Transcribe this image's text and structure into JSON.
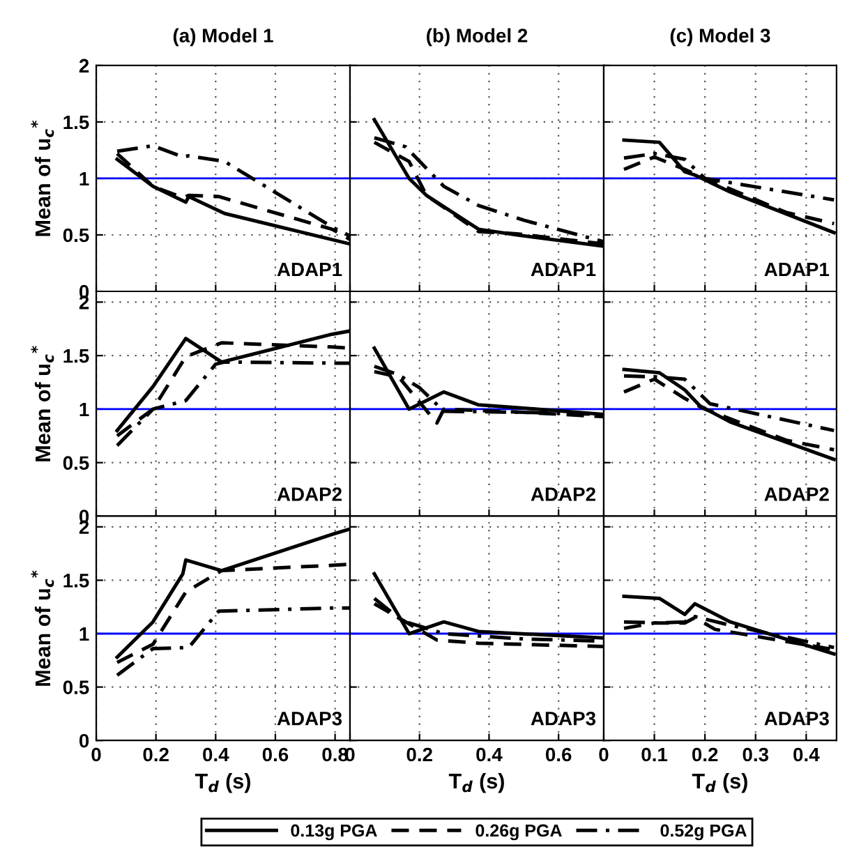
{
  "chart_data": [
    {
      "type": "line",
      "title": "(a) Model 1",
      "ylabel": "Mean of u$_{c}$$^{*}$",
      "annotations": [
        "ADAP1"
      ],
      "xlim": [
        0,
        0.85
      ],
      "xticks": [
        0,
        0.2,
        0.4,
        0.6,
        0.8
      ],
      "ylim": [
        0,
        2
      ],
      "yticks": [
        0,
        0.5,
        1,
        1.5,
        2
      ],
      "grid": true,
      "tick_labels": "y",
      "ref_lines": [
        {
          "axis": "y",
          "value": 1,
          "color": "#0000ff"
        }
      ],
      "series": [
        {
          "color": "#000000",
          "line_style": "solid",
          "x": [
            0.07,
            0.19,
            0.3,
            0.31,
            0.43,
            0.85
          ],
          "values": [
            1.17,
            0.93,
            0.79,
            0.84,
            0.69,
            0.42
          ]
        },
        {
          "color": "#000000",
          "line_style": "dashed",
          "x": [
            0.07,
            0.19,
            0.29,
            0.31,
            0.41,
            0.79,
            0.85
          ],
          "values": [
            1.22,
            0.93,
            0.83,
            0.85,
            0.84,
            0.55,
            0.46
          ]
        },
        {
          "color": "#000000",
          "line_style": "dashdot",
          "x": [
            0.07,
            0.19,
            0.29,
            0.31,
            0.43,
            0.79,
            0.85
          ],
          "values": [
            1.24,
            1.29,
            1.19,
            1.2,
            1.15,
            0.57,
            0.49
          ]
        }
      ]
    },
    {
      "type": "line",
      "title": "(b) Model 2",
      "annotations": [
        "ADAP1"
      ],
      "xlim": [
        0,
        0.73
      ],
      "xticks": [
        0,
        0.2,
        0.4,
        0.6
      ],
      "ylim": [
        0,
        2
      ],
      "yticks": [
        0,
        0.5,
        1,
        1.5,
        2
      ],
      "grid": true,
      "tick_labels": false,
      "ref_lines": [
        {
          "axis": "y",
          "value": 1,
          "color": "#0000ff"
        }
      ],
      "series": [
        {
          "color": "#000000",
          "line_style": "solid",
          "x": [
            0.07,
            0.17,
            0.22,
            0.37,
            0.48,
            0.73
          ],
          "values": [
            1.52,
            1.0,
            0.85,
            0.55,
            0.5,
            0.4
          ]
        },
        {
          "color": "#000000",
          "line_style": "dashed",
          "x": [
            0.07,
            0.17,
            0.22,
            0.37,
            0.48,
            0.73
          ],
          "values": [
            1.32,
            1.15,
            0.85,
            0.53,
            0.51,
            0.42
          ]
        },
        {
          "color": "#000000",
          "line_style": "dashdot",
          "x": [
            0.07,
            0.16,
            0.27,
            0.37,
            0.5,
            0.73
          ],
          "values": [
            1.36,
            1.28,
            0.93,
            0.76,
            0.63,
            0.44
          ]
        }
      ]
    },
    {
      "type": "line",
      "title": "(c) Model 3",
      "annotations": [
        "ADAP1"
      ],
      "xlim": [
        0,
        0.46
      ],
      "xticks": [
        0,
        0.1,
        0.2,
        0.3,
        0.4
      ],
      "ylim": [
        0,
        2
      ],
      "yticks": [
        0,
        0.5,
        1,
        1.5,
        2
      ],
      "grid": true,
      "tick_labels": false,
      "ref_lines": [
        {
          "axis": "y",
          "value": 1,
          "color": "#0000ff"
        }
      ],
      "series": [
        {
          "color": "#000000",
          "line_style": "solid",
          "x": [
            0.04,
            0.11,
            0.16,
            0.18,
            0.25,
            0.455
          ],
          "values": [
            1.34,
            1.32,
            1.06,
            1.03,
            0.88,
            0.52
          ]
        },
        {
          "color": "#000000",
          "line_style": "dashed",
          "x": [
            0.04,
            0.1,
            0.16,
            0.2,
            0.36,
            0.455
          ],
          "values": [
            1.08,
            1.19,
            1.08,
            1.0,
            0.7,
            0.6
          ]
        },
        {
          "color": "#000000",
          "line_style": "dashdot",
          "x": [
            0.04,
            0.1,
            0.16,
            0.2,
            0.455
          ],
          "values": [
            1.18,
            1.22,
            1.17,
            1.0,
            0.81
          ]
        }
      ]
    },
    {
      "type": "line",
      "ylabel": "Mean of u$_{c}$$^{*}$",
      "annotations": [
        "ADAP2"
      ],
      "xlim": [
        0,
        0.85
      ],
      "xticks": [
        0,
        0.2,
        0.4,
        0.6,
        0.8
      ],
      "ylim": [
        0,
        2.1
      ],
      "yticks": [
        0,
        0.5,
        1,
        1.5,
        2
      ],
      "grid": true,
      "tick_labels": "y",
      "ref_lines": [
        {
          "axis": "y",
          "value": 1,
          "color": "#0000ff"
        }
      ],
      "series": [
        {
          "color": "#000000",
          "line_style": "solid",
          "x": [
            0.07,
            0.19,
            0.3,
            0.42,
            0.79,
            0.85
          ],
          "values": [
            0.8,
            1.21,
            1.66,
            1.44,
            1.7,
            1.73
          ]
        },
        {
          "color": "#000000",
          "line_style": "dashed",
          "x": [
            0.07,
            0.19,
            0.3,
            0.42,
            0.79,
            0.85
          ],
          "values": [
            0.75,
            1.0,
            1.49,
            1.62,
            1.58,
            1.57
          ]
        },
        {
          "color": "#000000",
          "line_style": "dashdot",
          "x": [
            0.07,
            0.19,
            0.3,
            0.4,
            0.43,
            0.79,
            0.85
          ],
          "values": [
            0.66,
            1.0,
            1.08,
            1.42,
            1.44,
            1.43,
            1.43
          ]
        }
      ]
    },
    {
      "type": "line",
      "annotations": [
        "ADAP2"
      ],
      "xlim": [
        0,
        0.73
      ],
      "xticks": [
        0,
        0.2,
        0.4,
        0.6
      ],
      "ylim": [
        0,
        2.1
      ],
      "yticks": [
        0,
        0.5,
        1,
        1.5,
        2
      ],
      "grid": true,
      "tick_labels": false,
      "ref_lines": [
        {
          "axis": "y",
          "value": 1,
          "color": "#0000ff"
        }
      ],
      "series": [
        {
          "color": "#000000",
          "line_style": "solid",
          "x": [
            0.07,
            0.17,
            0.27,
            0.37,
            0.5,
            0.73
          ],
          "values": [
            1.57,
            1.0,
            1.16,
            1.04,
            1.01,
            0.95
          ]
        },
        {
          "color": "#000000",
          "line_style": "dashed",
          "x": [
            0.07,
            0.14,
            0.25,
            0.27,
            0.5,
            0.73
          ],
          "values": [
            1.35,
            1.3,
            0.87,
            1.0,
            0.97,
            0.93
          ]
        },
        {
          "color": "#000000",
          "line_style": "dashdot",
          "x": [
            0.07,
            0.14,
            0.2,
            0.27,
            0.5,
            0.73
          ],
          "values": [
            1.4,
            1.32,
            1.2,
            0.98,
            0.97,
            0.95
          ]
        }
      ]
    },
    {
      "type": "line",
      "annotations": [
        "ADAP2"
      ],
      "xlim": [
        0,
        0.46
      ],
      "xticks": [
        0,
        0.1,
        0.2,
        0.3,
        0.4
      ],
      "ylim": [
        0,
        2.1
      ],
      "yticks": [
        0,
        0.5,
        1,
        1.5,
        2
      ],
      "grid": true,
      "tick_labels": false,
      "ref_lines": [
        {
          "axis": "y",
          "value": 1,
          "color": "#0000ff"
        }
      ],
      "series": [
        {
          "color": "#000000",
          "line_style": "solid",
          "x": [
            0.04,
            0.11,
            0.16,
            0.19,
            0.25,
            0.455
          ],
          "values": [
            1.37,
            1.34,
            1.18,
            1.03,
            0.88,
            0.53
          ]
        },
        {
          "color": "#000000",
          "line_style": "dashed",
          "x": [
            0.04,
            0.1,
            0.16,
            0.2,
            0.36,
            0.455
          ],
          "values": [
            1.16,
            1.28,
            1.1,
            1.0,
            0.71,
            0.62
          ]
        },
        {
          "color": "#000000",
          "line_style": "dashdot",
          "x": [
            0.04,
            0.11,
            0.16,
            0.21,
            0.455
          ],
          "values": [
            1.31,
            1.3,
            1.28,
            1.05,
            0.8
          ]
        }
      ]
    },
    {
      "type": "line",
      "ylabel": "Mean of u$_{c}$$^{*}$",
      "xlabel": "T$_{d}$ (s)",
      "annotations": [
        "ADAP3"
      ],
      "xlim": [
        0,
        0.85
      ],
      "xticks": [
        0,
        0.2,
        0.4,
        0.6,
        0.8
      ],
      "ylim": [
        0,
        2.1
      ],
      "yticks": [
        0,
        0.5,
        1,
        1.5,
        2
      ],
      "grid": true,
      "ref_lines": [
        {
          "axis": "y",
          "value": 1,
          "color": "#0000ff"
        }
      ],
      "series": [
        {
          "color": "#000000",
          "line_style": "solid",
          "x": [
            0.07,
            0.19,
            0.29,
            0.3,
            0.42,
            0.79,
            0.85
          ],
          "values": [
            0.78,
            1.11,
            1.56,
            1.69,
            1.59,
            1.93,
            1.98
          ]
        },
        {
          "color": "#000000",
          "line_style": "dashed",
          "x": [
            0.07,
            0.19,
            0.3,
            0.42,
            0.79,
            0.85
          ],
          "values": [
            0.73,
            0.9,
            1.39,
            1.59,
            1.64,
            1.65
          ]
        },
        {
          "color": "#000000",
          "line_style": "dashdot",
          "x": [
            0.07,
            0.19,
            0.31,
            0.41,
            0.79,
            0.85
          ],
          "values": [
            0.61,
            0.86,
            0.87,
            1.21,
            1.24,
            1.24
          ]
        }
      ]
    },
    {
      "type": "line",
      "xlabel": "T$_{d}$ (s)",
      "annotations": [
        "ADAP3"
      ],
      "xlim": [
        0,
        0.73
      ],
      "xticks": [
        0,
        0.2,
        0.4,
        0.6
      ],
      "ylim": [
        0,
        2.1
      ],
      "yticks": [
        0,
        0.5,
        1,
        1.5,
        2
      ],
      "grid": true,
      "tick_labels": "x",
      "legend": "bottom",
      "ref_lines": [
        {
          "axis": "y",
          "value": 1,
          "color": "#0000ff"
        }
      ],
      "series": [
        {
          "name": "0.13g PGA",
          "color": "#000000",
          "line_style": "solid",
          "x": [
            0.07,
            0.17,
            0.27,
            0.37,
            0.73
          ],
          "values": [
            1.56,
            1.0,
            1.11,
            1.02,
            0.96
          ]
        },
        {
          "name": "0.26g PGA",
          "color": "#000000",
          "line_style": "dashed",
          "x": [
            0.07,
            0.25,
            0.37,
            0.73
          ],
          "values": [
            1.28,
            0.94,
            0.91,
            0.88
          ]
        },
        {
          "name": "0.52g PGA",
          "color": "#000000",
          "line_style": "dashdot",
          "x": [
            0.07,
            0.15,
            0.27,
            0.5,
            0.73
          ],
          "values": [
            1.33,
            1.12,
            1.0,
            0.95,
            0.93
          ]
        }
      ]
    },
    {
      "type": "line",
      "xlabel": "T$_{d}$ (s)",
      "annotations": [
        "ADAP3"
      ],
      "xlim": [
        0,
        0.46
      ],
      "xticks": [
        0,
        0.1,
        0.2,
        0.3,
        0.4
      ],
      "ylim": [
        0,
        2.1
      ],
      "yticks": [
        0,
        0.5,
        1,
        1.5,
        2
      ],
      "grid": true,
      "tick_labels": "x",
      "ref_lines": [
        {
          "axis": "y",
          "value": 1,
          "color": "#0000ff"
        }
      ],
      "series": [
        {
          "color": "#000000",
          "line_style": "solid",
          "x": [
            0.04,
            0.11,
            0.16,
            0.18,
            0.25,
            0.455
          ],
          "values": [
            1.35,
            1.33,
            1.18,
            1.28,
            1.11,
            0.81
          ]
        },
        {
          "color": "#000000",
          "line_style": "dashed",
          "x": [
            0.04,
            0.1,
            0.16,
            0.18,
            0.22,
            0.455
          ],
          "values": [
            1.05,
            1.1,
            1.1,
            1.15,
            1.04,
            0.85
          ]
        },
        {
          "color": "#000000",
          "line_style": "dashdot",
          "x": [
            0.04,
            0.11,
            0.16,
            0.18,
            0.24,
            0.455
          ],
          "values": [
            1.11,
            1.1,
            1.11,
            1.16,
            1.09,
            0.87
          ]
        }
      ]
    }
  ]
}
